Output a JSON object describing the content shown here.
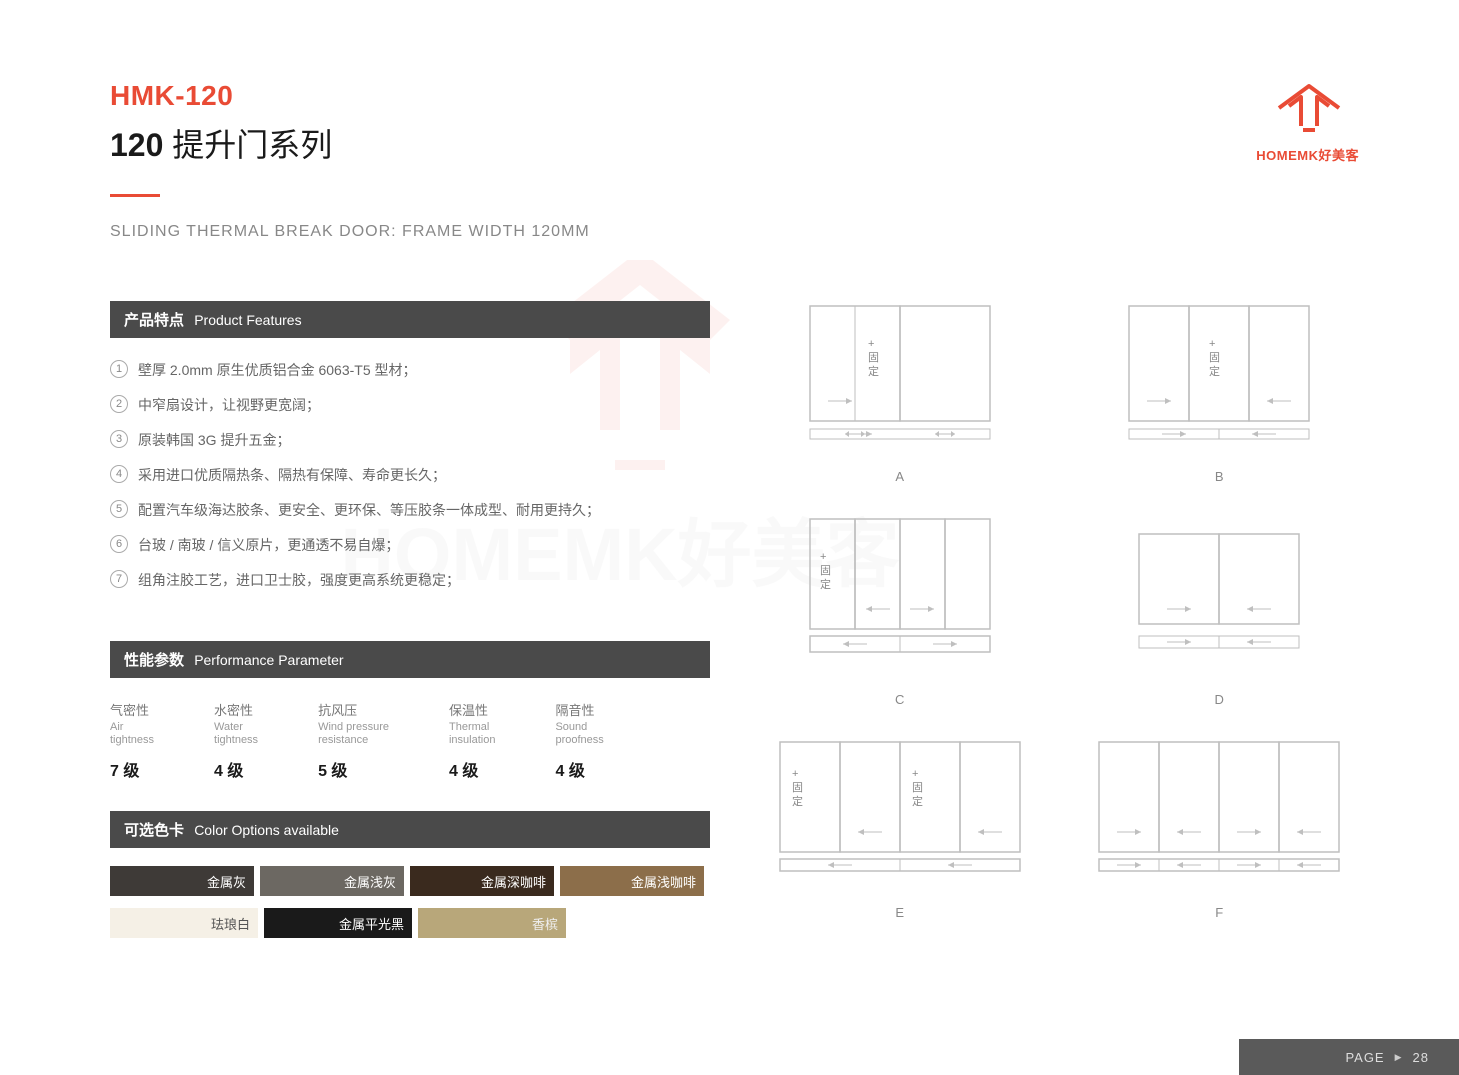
{
  "header": {
    "product_code": "HMK-120",
    "title_bold": "120",
    "title_rest": " 提升门系列",
    "subtitle": "SLIDING THERMAL BREAK DOOR: FRAME WIDTH 120MM",
    "logo_text": "HOMEMK好美客",
    "accent_color": "#e94b35"
  },
  "watermark": {
    "text": "HOMEMK好美客",
    "accent_color": "#e94b35"
  },
  "features": {
    "header_cn": "产品特点",
    "header_en": "Product Features",
    "items": [
      {
        "num": "1",
        "text": "壁厚 2.0mm 原生优质铝合金 6063-T5 型材；"
      },
      {
        "num": "2",
        "text": "中窄扇设计，让视野更宽阔；"
      },
      {
        "num": "3",
        "text": "原装韩国 3G 提升五金；"
      },
      {
        "num": "4",
        "text": "采用进口优质隔热条、隔热有保障、寿命更长久；"
      },
      {
        "num": "5",
        "text": "配置汽车级海达胶条、更安全、更环保、等压胶条一体成型、耐用更持久；"
      },
      {
        "num": "6",
        "text": "台玻 / 南玻 / 信义原片，更通透不易自爆；"
      },
      {
        "num": "7",
        "text": "组角注胶工艺，进口卫士胶，强度更高系统更稳定；"
      }
    ]
  },
  "performance": {
    "header_cn": "性能参数",
    "header_en": "Performance Parameter",
    "items": [
      {
        "cn": "气密性",
        "en1": "Air",
        "en2": "tightness",
        "value": "7 级"
      },
      {
        "cn": "水密性",
        "en1": "Water",
        "en2": "tightness",
        "value": "4 级"
      },
      {
        "cn": "抗风压",
        "en1": "Wind pressure",
        "en2": "resistance",
        "value": "5 级"
      },
      {
        "cn": "保温性",
        "en1": "Thermal",
        "en2": "insulation",
        "value": "4 级"
      },
      {
        "cn": "隔音性",
        "en1": "Sound",
        "en2": "proofness",
        "value": "4 级"
      }
    ]
  },
  "colors": {
    "header_cn": "可选色卡",
    "header_en": "Color Options available",
    "rows": [
      [
        {
          "label": "金属灰",
          "bg": "#3e3a37",
          "fg": "#ffffff"
        },
        {
          "label": "金属浅灰",
          "bg": "#6c6862",
          "fg": "#ffffff"
        },
        {
          "label": "金属深咖啡",
          "bg": "#3a2a1e",
          "fg": "#ffffff"
        },
        {
          "label": "金属浅咖啡",
          "bg": "#8c6e4a",
          "fg": "#ffffff"
        }
      ],
      [
        {
          "label": "珐琅白",
          "bg": "#f5f0e6",
          "fg": "#555555"
        },
        {
          "label": "金属平光黑",
          "bg": "#1a1a1a",
          "fg": "#ffffff"
        },
        {
          "label": "香槟",
          "bg": "#b8a77a",
          "fg": "#eeeeee"
        }
      ]
    ]
  },
  "diagrams": {
    "stroke": "#bfbfbf",
    "text_fill": "#888888",
    "fixed_label_plus": "+",
    "fixed_label_cn1": "固",
    "fixed_label_cn2": "定",
    "items": [
      {
        "label": "A"
      },
      {
        "label": "B"
      },
      {
        "label": "C"
      },
      {
        "label": "D"
      },
      {
        "label": "E"
      },
      {
        "label": "F"
      }
    ]
  },
  "footer": {
    "label": "PAGE",
    "triangle": "▶",
    "number": "28",
    "bg": "#5a5a5a"
  }
}
